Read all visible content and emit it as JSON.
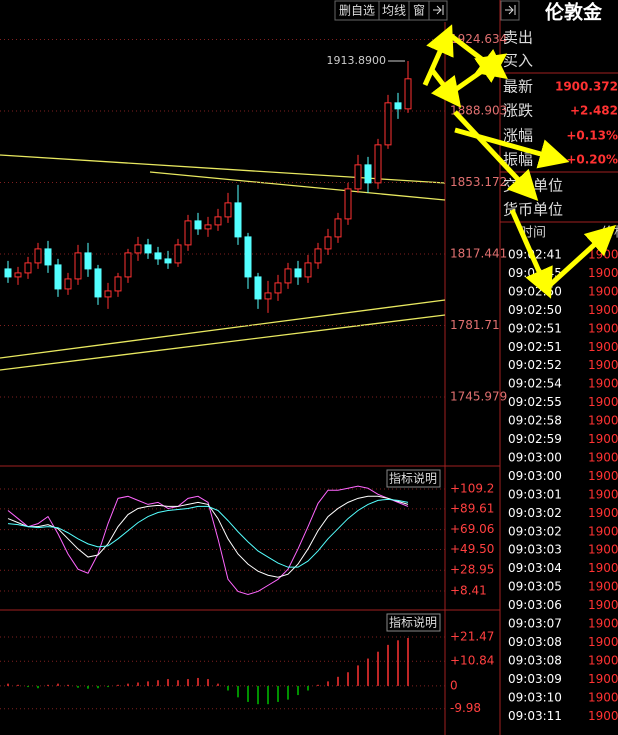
{
  "toolbar": {
    "buttons": [
      "删自选",
      "均线",
      "窗"
    ]
  },
  "chart_data": [
    {
      "type": "candlestick",
      "up_color": "#ff3232",
      "down_color": "#54ffff",
      "grid": true,
      "ylim": [
        1712.0,
        1944.4
      ],
      "yticks": [
        1745.979,
        1781.71,
        1817.441,
        1853.172,
        1888.903,
        1924.634
      ],
      "annotation": "1913.8900",
      "open": [
        1810,
        1806,
        1808,
        1813,
        1820,
        1812,
        1800,
        1805,
        1818,
        1810,
        1796,
        1799,
        1806,
        1818,
        1822,
        1818,
        1815,
        1813,
        1822,
        1834,
        1830,
        1832,
        1836,
        1843,
        1826,
        1806,
        1795,
        1798,
        1803,
        1810,
        1806,
        1813,
        1820,
        1826,
        1835,
        1850,
        1862,
        1853,
        1872,
        1893,
        1890
      ],
      "high": [
        1814,
        1811,
        1816,
        1823,
        1824,
        1815,
        1808,
        1822,
        1823,
        1812,
        1803,
        1808,
        1820,
        1826,
        1825,
        1821,
        1819,
        1825,
        1837,
        1838,
        1836,
        1840,
        1848,
        1852,
        1828,
        1808,
        1804,
        1807,
        1813,
        1814,
        1817,
        1823,
        1830,
        1838,
        1853,
        1867,
        1866,
        1875,
        1897,
        1898,
        1913.89
      ],
      "low": [
        1803,
        1802,
        1805,
        1810,
        1808,
        1796,
        1797,
        1802,
        1806,
        1792,
        1790,
        1796,
        1803,
        1814,
        1815,
        1812,
        1810,
        1811,
        1819,
        1827,
        1826,
        1829,
        1833,
        1822,
        1800,
        1790,
        1788,
        1794,
        1800,
        1802,
        1803,
        1810,
        1817,
        1823,
        1832,
        1848,
        1848,
        1850,
        1870,
        1885,
        1888
      ],
      "close": [
        1806,
        1808,
        1813,
        1820,
        1812,
        1800,
        1805,
        1818,
        1810,
        1796,
        1799,
        1806,
        1818,
        1822,
        1818,
        1815,
        1813,
        1822,
        1834,
        1830,
        1832,
        1836,
        1843,
        1826,
        1806,
        1795,
        1798,
        1803,
        1810,
        1806,
        1813,
        1820,
        1826,
        1835,
        1850,
        1862,
        1853,
        1872,
        1893,
        1890,
        1905
      ]
    },
    {
      "type": "line",
      "button": "指标说明",
      "grid": true,
      "ylim": [
        -5.4,
        128
      ],
      "yticks": [
        {
          "value": 8.41,
          "label": "+8.41"
        },
        {
          "value": 28.95,
          "label": "+28.95"
        },
        {
          "value": 49.5,
          "label": "+49.50"
        },
        {
          "value": 69.06,
          "label": "+69.06"
        },
        {
          "value": 89.61,
          "label": "+89.61"
        },
        {
          "value": 109.2,
          "label": "+109.2"
        }
      ],
      "series": [
        {
          "color": "#ff66ff",
          "values": [
            88,
            80,
            72,
            75,
            82,
            65,
            45,
            30,
            26,
            45,
            75,
            100,
            102,
            98,
            94,
            96,
            90,
            92,
            100,
            102,
            96,
            60,
            20,
            8,
            5,
            8,
            14,
            20,
            30,
            50,
            72,
            95,
            108,
            108,
            110,
            112,
            110,
            104,
            100,
            96,
            92
          ]
        },
        {
          "color": "#ffffff",
          "values": [
            80,
            76,
            72,
            72,
            74,
            70,
            60,
            50,
            42,
            44,
            55,
            72,
            84,
            90,
            92,
            93,
            92,
            92,
            94,
            96,
            94,
            80,
            60,
            45,
            35,
            28,
            24,
            22,
            25,
            35,
            50,
            68,
            82,
            90,
            96,
            100,
            102,
            102,
            100,
            97,
            94
          ]
        },
        {
          "color": "#54ffff",
          "values": [
            75,
            74,
            72,
            71,
            72,
            71,
            66,
            60,
            55,
            52,
            53,
            60,
            68,
            76,
            82,
            86,
            88,
            89,
            90,
            92,
            92,
            88,
            78,
            67,
            57,
            48,
            42,
            36,
            32,
            32,
            38,
            48,
            60,
            70,
            80,
            88,
            94,
            98,
            99,
            98,
            96
          ]
        }
      ]
    },
    {
      "type": "bar",
      "button": "指标说明",
      "grid": true,
      "ylim": [
        -21.5,
        32.4
      ],
      "pos_color": "#ff3232",
      "neg_color": "#00c000",
      "yticks": [
        {
          "value": -9.98,
          "label": "-9.98"
        },
        0,
        {
          "value": 10.84,
          "label": "+10.84"
        },
        {
          "value": 21.47,
          "label": "+21.47"
        }
      ],
      "values": [
        1,
        0.5,
        -0.5,
        -1,
        0.5,
        1,
        0.5,
        -0.8,
        -1.2,
        -1,
        -0.5,
        0.5,
        1,
        1.5,
        2,
        2.5,
        3,
        2.5,
        3,
        3.5,
        3,
        1,
        -2,
        -5,
        -7,
        -8,
        -8,
        -7,
        -6,
        -4,
        -2,
        0.5,
        2,
        4,
        6,
        9,
        12,
        15,
        18,
        20,
        21
      ]
    }
  ],
  "quote_panel": {
    "title": "伦敦金",
    "rows": [
      [
        "卖出",
        ""
      ],
      [
        "买入",
        ""
      ],
      [
        "最新",
        "1900.372"
      ],
      [
        "涨跌",
        "+2.482"
      ],
      [
        "涨幅",
        "+0.13%"
      ],
      [
        "振幅",
        "+0.20%"
      ],
      [
        "交易单位",
        ""
      ],
      [
        "货币单位",
        ""
      ]
    ]
  },
  "ticks_list": {
    "header": [
      "时间",
      "价格"
    ],
    "times": [
      "09:02:41",
      "09:02:45",
      "09:02:50",
      "09:02:50",
      "09:02:51",
      "09:02:51",
      "09:02:52",
      "09:02:54",
      "09:02:55",
      "09:02:58",
      "09:02:59",
      "09:03:00",
      "09:03:00",
      "09:03:01",
      "09:03:02",
      "09:03:02",
      "09:03:03",
      "09:03:04",
      "09:03:05",
      "09:03:06",
      "09:03:07",
      "09:03:08",
      "09:03:08",
      "09:03:09",
      "09:03:10",
      "09:03:11"
    ],
    "price": "1900."
  }
}
